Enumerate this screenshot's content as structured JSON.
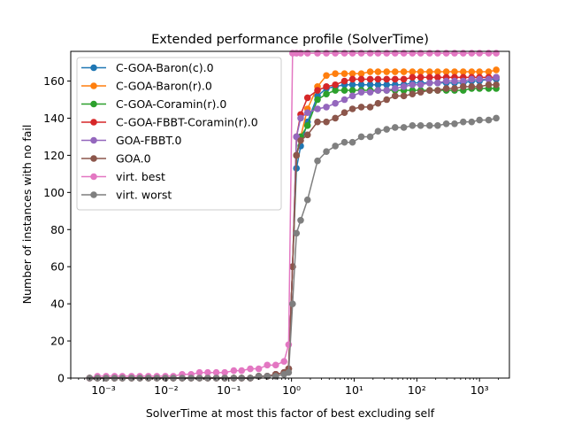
{
  "chart_data": {
    "type": "line",
    "title": "Extended performance profile (SolverTime)",
    "xlabel": "SolverTime at most this factor of best excluding self",
    "ylabel": "Number of instances with no fail",
    "x_scale": "log",
    "xlim": [
      0.0003,
      3000
    ],
    "ylim": [
      0,
      176
    ],
    "yticks": [
      0,
      20,
      40,
      60,
      80,
      100,
      120,
      140,
      160
    ],
    "ytick_labels": [
      "0",
      "20",
      "40",
      "60",
      "80",
      "100",
      "120",
      "140",
      "160"
    ],
    "xticks": [
      0.001,
      0.01,
      0.1,
      1,
      10,
      100,
      1000
    ],
    "xtick_labels": [
      "10⁻³",
      "10⁻²",
      "10⁻¹",
      "10⁰",
      "10¹",
      "10²",
      "10³"
    ],
    "grid": false,
    "legend_position": "top-left",
    "x": [
      0.0006,
      0.0008,
      0.0011,
      0.0015,
      0.002,
      0.0028,
      0.0038,
      0.0052,
      0.0071,
      0.0097,
      0.013,
      0.018,
      0.025,
      0.034,
      0.046,
      0.063,
      0.086,
      0.12,
      0.16,
      0.22,
      0.3,
      0.41,
      0.56,
      0.76,
      0.9,
      1.04,
      1.2,
      1.4,
      1.8,
      2.6,
      3.6,
      5,
      7,
      9.4,
      13,
      18,
      24,
      33,
      45,
      62,
      85,
      115,
      160,
      215,
      295,
      400,
      550,
      750,
      1000,
      1400,
      1850
    ],
    "series": [
      {
        "name": "C-GOA-Baron(c).0",
        "color": "#1f77b4",
        "values": [
          0,
          0,
          0,
          0,
          0,
          0,
          0,
          0,
          0,
          0,
          0,
          0,
          0,
          0,
          0,
          0,
          0,
          0,
          0,
          0,
          1,
          1,
          2,
          3,
          5,
          60,
          113,
          125,
          138,
          152,
          156,
          157,
          158,
          158,
          158,
          158,
          158,
          158,
          158,
          158,
          159,
          159,
          159,
          159,
          159,
          159,
          159,
          160,
          160,
          161,
          161
        ]
      },
      {
        "name": "C-GOA-Baron(r).0",
        "color": "#ff7f0e",
        "values": [
          0,
          0,
          0,
          0,
          0,
          0,
          0,
          0,
          0,
          0,
          0,
          0,
          0,
          0,
          0,
          0,
          0,
          0,
          0,
          0,
          1,
          1,
          2,
          3,
          5,
          60,
          120,
          130,
          145,
          157,
          163,
          164,
          164,
          164,
          164,
          165,
          165,
          165,
          165,
          165,
          165,
          165,
          165,
          165,
          165,
          165,
          165,
          165,
          165,
          165,
          166
        ]
      },
      {
        "name": "C-GOA-Coramin(r).0",
        "color": "#2ca02c",
        "values": [
          0,
          0,
          0,
          0,
          0,
          0,
          0,
          0,
          0,
          0,
          0,
          0,
          0,
          0,
          0,
          0,
          0,
          0,
          0,
          0,
          1,
          1,
          2,
          3,
          5,
          60,
          120,
          130,
          136,
          150,
          153,
          155,
          155,
          155,
          155,
          155,
          155,
          155,
          155,
          155,
          155,
          155,
          155,
          155,
          155,
          155,
          155,
          156,
          156,
          156,
          156
        ]
      },
      {
        "name": "C-GOA-FBBT-Coramin(r).0",
        "color": "#d62728",
        "values": [
          0,
          0,
          0,
          0,
          0,
          0,
          0,
          0,
          0,
          0,
          0,
          0,
          0,
          0,
          0,
          0,
          0,
          0,
          0,
          0,
          1,
          1,
          2,
          3,
          5,
          60,
          130,
          142,
          151,
          155,
          157,
          158,
          160,
          161,
          161,
          161,
          161,
          161,
          161,
          161,
          162,
          162,
          162,
          162,
          162,
          162,
          162,
          162,
          162,
          162,
          162
        ]
      },
      {
        "name": "GOA-FBBT.0",
        "color": "#9467bd",
        "values": [
          0,
          0,
          0,
          0,
          0,
          0,
          0,
          0,
          0,
          0,
          0,
          0,
          0,
          0,
          0,
          0,
          0,
          0,
          0,
          0,
          1,
          1,
          2,
          3,
          5,
          60,
          130,
          140,
          143,
          145,
          146,
          148,
          150,
          152,
          154,
          154,
          155,
          155,
          156,
          157,
          158,
          158,
          159,
          159,
          160,
          160,
          160,
          161,
          161,
          161,
          162
        ]
      },
      {
        "name": "GOA.0",
        "color": "#8c564b",
        "values": [
          0,
          0,
          0,
          0,
          0,
          0,
          0,
          0,
          0,
          0,
          0,
          0,
          0,
          0,
          0,
          0,
          0,
          0,
          0,
          0,
          1,
          1,
          2,
          3,
          5,
          60,
          120,
          128,
          131,
          138,
          138,
          140,
          143,
          145,
          146,
          146,
          148,
          150,
          152,
          152,
          153,
          154,
          155,
          155,
          156,
          156,
          157,
          157,
          157,
          158,
          158
        ]
      },
      {
        "name": "virt. best",
        "color": "#e377c2",
        "values": [
          0,
          1,
          1,
          1,
          1,
          1,
          1,
          1,
          1,
          1,
          1,
          2,
          2,
          3,
          3,
          3,
          3,
          4,
          4,
          5,
          5,
          7,
          7,
          9,
          18,
          175,
          175,
          175,
          175,
          175,
          175,
          175,
          175,
          175,
          175,
          175,
          175,
          175,
          175,
          175,
          175,
          175,
          175,
          175,
          175,
          175,
          175,
          175,
          175,
          175,
          175
        ]
      },
      {
        "name": "virt. worst",
        "color": "#7f7f7f",
        "values": [
          0,
          0,
          0,
          0,
          0,
          0,
          0,
          0,
          0,
          0,
          0,
          0,
          0,
          0,
          0,
          0,
          0,
          0,
          0,
          0,
          1,
          1,
          1,
          2,
          3,
          40,
          78,
          85,
          96,
          117,
          122,
          125,
          127,
          127,
          130,
          130,
          133,
          134,
          135,
          135,
          136,
          136,
          136,
          136,
          137,
          137,
          138,
          138,
          139,
          139,
          140
        ]
      }
    ]
  }
}
